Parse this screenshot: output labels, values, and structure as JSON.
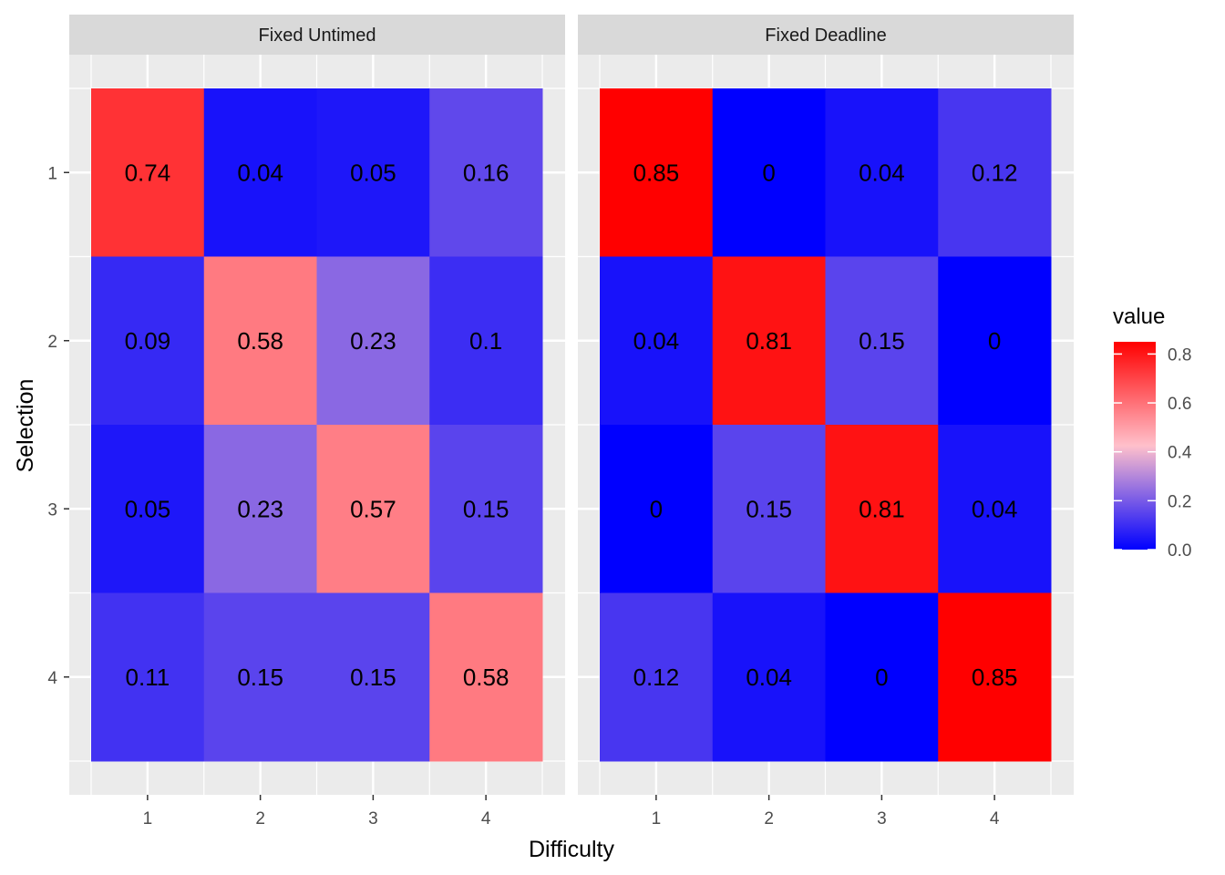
{
  "chart_data": {
    "type": "heatmap",
    "xlabel": "Difficulty",
    "ylabel": "Selection",
    "x_categories": [
      "1",
      "2",
      "3",
      "4"
    ],
    "y_categories": [
      "1",
      "2",
      "3",
      "4"
    ],
    "panels": [
      {
        "name": "Fixed Untimed",
        "values": [
          [
            0.74,
            0.04,
            0.05,
            0.16
          ],
          [
            0.09,
            0.58,
            0.23,
            0.1
          ],
          [
            0.05,
            0.23,
            0.57,
            0.15
          ],
          [
            0.11,
            0.15,
            0.15,
            0.58
          ]
        ],
        "labels": [
          [
            "0.74",
            "0.04",
            "0.05",
            "0.16"
          ],
          [
            "0.09",
            "0.58",
            "0.23",
            "0.1"
          ],
          [
            "0.05",
            "0.23",
            "0.57",
            "0.15"
          ],
          [
            "0.11",
            "0.15",
            "0.15",
            "0.58"
          ]
        ]
      },
      {
        "name": "Fixed Deadline",
        "values": [
          [
            0.85,
            0,
            0.04,
            0.12
          ],
          [
            0.04,
            0.81,
            0.15,
            0
          ],
          [
            0,
            0.15,
            0.81,
            0.04
          ],
          [
            0.12,
            0.04,
            0,
            0.85
          ]
        ],
        "labels": [
          [
            "0.85",
            "0",
            "0.04",
            "0.12"
          ],
          [
            "0.04",
            "0.81",
            "0.15",
            "0"
          ],
          [
            "0",
            "0.15",
            "0.81",
            "0.04"
          ],
          [
            "0.12",
            "0.04",
            "0",
            "0.85"
          ]
        ]
      }
    ],
    "legend": {
      "title": "value",
      "placement": "right",
      "range": [
        0,
        0.85
      ],
      "ticks": [
        "0.0",
        "0.2",
        "0.4",
        "0.6",
        "0.8"
      ],
      "tick_values": [
        0,
        0.2,
        0.4,
        0.6,
        0.8
      ]
    },
    "colors": {
      "low": "#0000ff",
      "mid": "#ffc0cb",
      "high": "#ff0000",
      "midpoint": 0.425,
      "panel_background": "#ebebeb",
      "strip_background": "#d9d9d9",
      "grid": "#ffffff"
    }
  }
}
